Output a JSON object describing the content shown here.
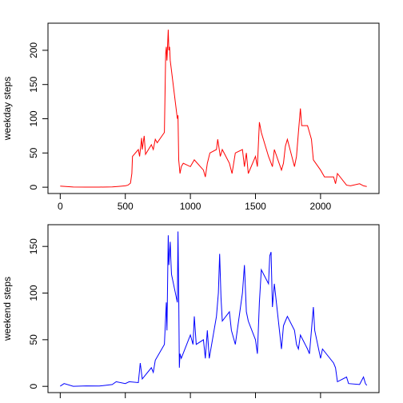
{
  "chart_data": [
    {
      "type": "line",
      "ylabel": "weekday steps",
      "color": "red",
      "x": [
        0,
        100,
        200,
        300,
        400,
        450,
        500,
        520,
        540,
        550,
        555,
        600,
        610,
        625,
        630,
        645,
        655,
        700,
        715,
        730,
        745,
        800,
        810,
        815,
        820,
        830,
        835,
        840,
        845,
        855,
        900,
        905,
        910,
        920,
        930,
        945,
        1000,
        1030,
        1100,
        1115,
        1130,
        1150,
        1200,
        1210,
        1230,
        1245,
        1300,
        1320,
        1345,
        1400,
        1415,
        1430,
        1445,
        1500,
        1515,
        1530,
        1545,
        1600,
        1630,
        1645,
        1700,
        1715,
        1730,
        1745,
        1800,
        1815,
        1830,
        1845,
        1855,
        1900,
        1930,
        1945,
        2000,
        2030,
        2100,
        2115,
        2130,
        2200,
        2230,
        2300,
        2330,
        2355
      ],
      "values": [
        1.7,
        0.3,
        0.2,
        0.1,
        0.5,
        1.2,
        2,
        3,
        6,
        20,
        45,
        55,
        45,
        72,
        55,
        75,
        48,
        62,
        55,
        70,
        65,
        80,
        195,
        205,
        185,
        230,
        200,
        205,
        185,
        170,
        100,
        105,
        40,
        20,
        30,
        35,
        30,
        40,
        25,
        15,
        35,
        50,
        55,
        70,
        45,
        55,
        35,
        20,
        50,
        55,
        30,
        50,
        20,
        45,
        30,
        95,
        80,
        45,
        30,
        55,
        25,
        35,
        60,
        70,
        30,
        45,
        80,
        115,
        90,
        90,
        70,
        40,
        25,
        15,
        15,
        5,
        20,
        3,
        2,
        5,
        2,
        1
      ],
      "xlim": [
        -94.2,
        2449.2
      ],
      "xticks": [
        0,
        500,
        1000,
        1500,
        2000
      ],
      "ylim": [
        -9.2,
        239.6
      ],
      "yticks": [
        0,
        50,
        100,
        150,
        200
      ]
    },
    {
      "type": "line",
      "ylabel": "weekend steps",
      "color": "blue",
      "x": [
        0,
        30,
        100,
        200,
        300,
        400,
        430,
        500,
        530,
        600,
        615,
        630,
        700,
        715,
        730,
        800,
        815,
        820,
        830,
        835,
        845,
        850,
        855,
        900,
        905,
        910,
        915,
        920,
        930,
        1000,
        1020,
        1030,
        1045,
        1100,
        1115,
        1130,
        1145,
        1200,
        1215,
        1225,
        1235,
        1245,
        1300,
        1315,
        1345,
        1400,
        1415,
        1430,
        1445,
        1500,
        1515,
        1530,
        1545,
        1600,
        1610,
        1620,
        1630,
        1645,
        1700,
        1715,
        1730,
        1745,
        1800,
        1815,
        1830,
        1845,
        1900,
        1915,
        1930,
        1945,
        1955,
        2000,
        2015,
        2100,
        2115,
        2130,
        2200,
        2215,
        2300,
        2330,
        2345,
        2355
      ],
      "values": [
        0.2,
        3,
        0.1,
        0.5,
        0.3,
        2,
        5,
        3,
        5,
        4,
        25,
        8,
        20,
        15,
        28,
        45,
        90,
        60,
        162,
        130,
        155,
        135,
        120,
        90,
        166,
        100,
        20,
        35,
        30,
        55,
        45,
        75,
        45,
        50,
        30,
        60,
        30,
        75,
        100,
        142,
        95,
        70,
        80,
        60,
        45,
        100,
        130,
        80,
        70,
        50,
        35,
        90,
        125,
        110,
        140,
        144,
        85,
        110,
        40,
        65,
        70,
        75,
        60,
        45,
        40,
        55,
        40,
        35,
        60,
        85,
        60,
        30,
        40,
        25,
        20,
        5,
        10,
        3,
        2,
        10,
        3,
        1
      ],
      "xlim": [
        -94.2,
        2449.2
      ],
      "xticks": [
        0,
        500,
        1000,
        1500,
        2000
      ],
      "ylim": [
        -6.7,
        173.3
      ],
      "yticks": [
        0,
        50,
        100,
        150
      ]
    }
  ]
}
